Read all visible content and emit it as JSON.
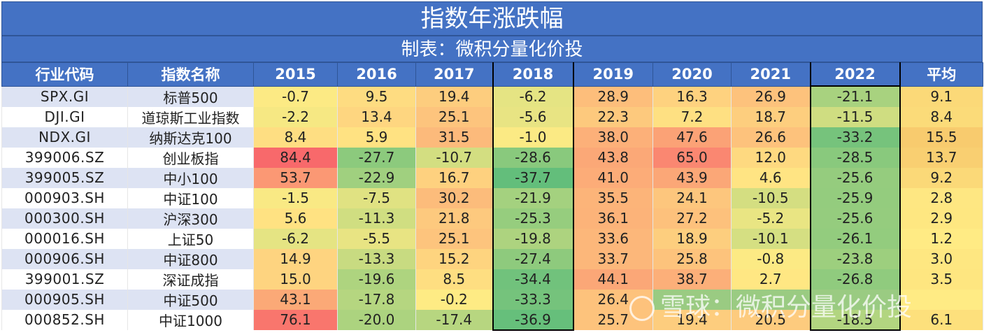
{
  "title": "指数年涨跌幅",
  "subtitle": "制表：微积分量化价投",
  "watermark": "雪球：微积分量化价投",
  "chart_data": {
    "type": "table",
    "columns": [
      "行业代码",
      "指数名称",
      "2015",
      "2016",
      "2017",
      "2018",
      "2019",
      "2020",
      "2021",
      "2022",
      "平均"
    ],
    "rows": [
      {
        "code": "SPX.GI",
        "name": "标普500",
        "values": [
          "-0.7",
          "9.5",
          "19.4",
          "-6.2",
          "28.9",
          "16.3",
          "26.9",
          "-21.1",
          "9.1"
        ]
      },
      {
        "code": "DJI.GI",
        "name": "道琼斯工业指数",
        "values": [
          "-2.2",
          "13.4",
          "25.1",
          "-5.6",
          "22.3",
          "7.2",
          "18.7",
          "-11.5",
          "8.4"
        ]
      },
      {
        "code": "NDX.GI",
        "name": "纳斯达克100",
        "values": [
          "8.4",
          "5.9",
          "31.5",
          "-1.0",
          "38.0",
          "47.6",
          "26.6",
          "-33.2",
          "15.5"
        ]
      },
      {
        "code": "399006.SZ",
        "name": "创业板指",
        "values": [
          "84.4",
          "-27.7",
          "-10.7",
          "-28.6",
          "43.8",
          "65.0",
          "12.0",
          "-28.5",
          "13.7"
        ]
      },
      {
        "code": "399005.SZ",
        "name": "中小100",
        "values": [
          "53.7",
          "-22.9",
          "16.7",
          "-37.7",
          "41.0",
          "43.9",
          "4.6",
          "-25.6",
          "9.2"
        ]
      },
      {
        "code": "000903.SH",
        "name": "中证100",
        "values": [
          "-1.5",
          "-7.5",
          "30.2",
          "-21.9",
          "35.5",
          "24.1",
          "-10.5",
          "-25.9",
          "2.8"
        ]
      },
      {
        "code": "000300.SH",
        "name": "沪深300",
        "values": [
          "5.6",
          "-11.3",
          "21.8",
          "-25.3",
          "36.1",
          "27.2",
          "-5.2",
          "-25.6",
          "2.9"
        ]
      },
      {
        "code": "000016.SH",
        "name": "上证50",
        "values": [
          "-6.2",
          "-5.5",
          "25.1",
          "-19.8",
          "33.6",
          "18.9",
          "-10.1",
          "-26.1",
          "1.2"
        ]
      },
      {
        "code": "000906.SH",
        "name": "中证800",
        "values": [
          "14.9",
          "-13.3",
          "15.2",
          "-27.4",
          "33.7",
          "25.8",
          "-0.8",
          "-23.8",
          "3.0"
        ]
      },
      {
        "code": "399001.SZ",
        "name": "深证成指",
        "values": [
          "15.0",
          "-19.6",
          "8.5",
          "-34.4",
          "44.1",
          "38.7",
          "2.7",
          "-26.8",
          "3.5"
        ]
      },
      {
        "code": "000905.SH",
        "name": "中证500",
        "values": [
          "43.1",
          "-17.8",
          "-0.2",
          "-33.3",
          "26.4",
          "",
          "",
          "",
          ""
        ]
      },
      {
        "code": "000852.SH",
        "name": "中证1000",
        "values": [
          "76.1",
          "-20.0",
          "-17.4",
          "-36.9",
          "25.7",
          "19.4",
          "20.5",
          "-18.5",
          "6.1"
        ]
      }
    ],
    "color_scale": {
      "low": "#63be7b",
      "mid": "#ffeb84",
      "high": "#f8696b"
    }
  }
}
